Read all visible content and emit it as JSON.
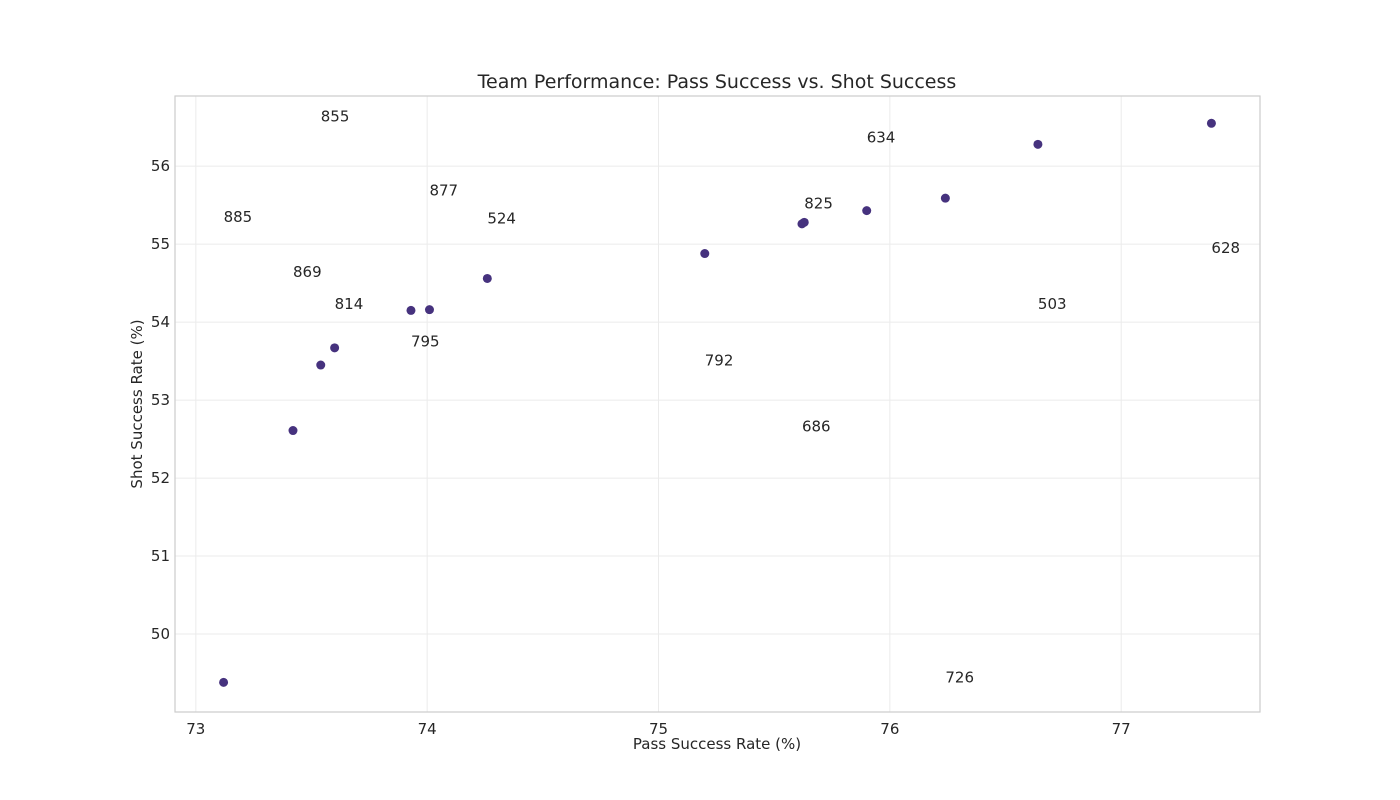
{
  "chart_data": {
    "type": "scatter",
    "title": "Team Performance: Pass Success vs. Shot Success",
    "xlabel": "Pass Success Rate (%)",
    "ylabel": "Shot Success Rate (%)",
    "xlim": [
      72.91,
      77.6
    ],
    "ylim": [
      49.0,
      56.9
    ],
    "xticks": [
      73,
      74,
      75,
      76,
      77
    ],
    "yticks": [
      50,
      51,
      52,
      53,
      54,
      55,
      56
    ],
    "grid": true,
    "marker_color": "#46327e",
    "points": [
      {
        "x": 73.12,
        "y": 49.38
      },
      {
        "x": 73.42,
        "y": 52.61
      },
      {
        "x": 73.54,
        "y": 53.45
      },
      {
        "x": 73.6,
        "y": 53.67
      },
      {
        "x": 73.93,
        "y": 54.15
      },
      {
        "x": 74.01,
        "y": 54.16
      },
      {
        "x": 74.26,
        "y": 54.56
      },
      {
        "x": 75.2,
        "y": 54.88
      },
      {
        "x": 75.62,
        "y": 55.26
      },
      {
        "x": 75.63,
        "y": 55.28
      },
      {
        "x": 75.9,
        "y": 55.43
      },
      {
        "x": 76.24,
        "y": 55.59
      },
      {
        "x": 76.64,
        "y": 56.28
      },
      {
        "x": 77.39,
        "y": 56.55
      }
    ],
    "annotations": [
      {
        "text": "855",
        "x": 73.54,
        "y": 56.64
      },
      {
        "text": "634",
        "x": 75.9,
        "y": 56.37
      },
      {
        "text": "877",
        "x": 74.01,
        "y": 55.69
      },
      {
        "text": "825",
        "x": 75.63,
        "y": 55.52
      },
      {
        "text": "885",
        "x": 73.12,
        "y": 55.35
      },
      {
        "text": "524",
        "x": 74.26,
        "y": 55.33
      },
      {
        "text": "628",
        "x": 77.39,
        "y": 54.95
      },
      {
        "text": "869",
        "x": 73.42,
        "y": 54.64
      },
      {
        "text": "503",
        "x": 76.64,
        "y": 54.23
      },
      {
        "text": "814",
        "x": 73.6,
        "y": 54.23
      },
      {
        "text": "795",
        "x": 73.93,
        "y": 53.75
      },
      {
        "text": "792",
        "x": 75.2,
        "y": 53.51
      },
      {
        "text": "686",
        "x": 75.62,
        "y": 52.66
      },
      {
        "text": "726",
        "x": 76.24,
        "y": 49.44
      }
    ]
  }
}
